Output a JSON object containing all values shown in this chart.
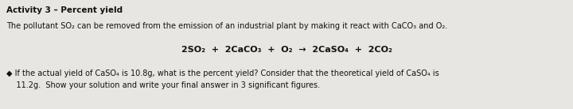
{
  "title": "Activity 3 – Percent yield",
  "line1": "The pollutant SO₂ can be removed from the emission of an industrial plant by making it react with CaCO₃ and O₂.",
  "equation": "2SO₂  +  2CaCO₃  +  O₂  →  2CaSO₄  +  2CO₂",
  "bullet_sym": "◆",
  "bullet_text1": " If the actual yield of CaSO₄ is 10.8g, what is the percent yield? Consider that the theoretical yield of CaSO₄ is",
  "bullet_text2": "    11.2g.  Show your solution and write your final answer in 3 significant figures.",
  "bg_color": "#e8e6e2",
  "text_color": "#111111",
  "title_fontsize": 7.5,
  "body_fontsize": 7.0,
  "eq_fontsize": 8.0
}
